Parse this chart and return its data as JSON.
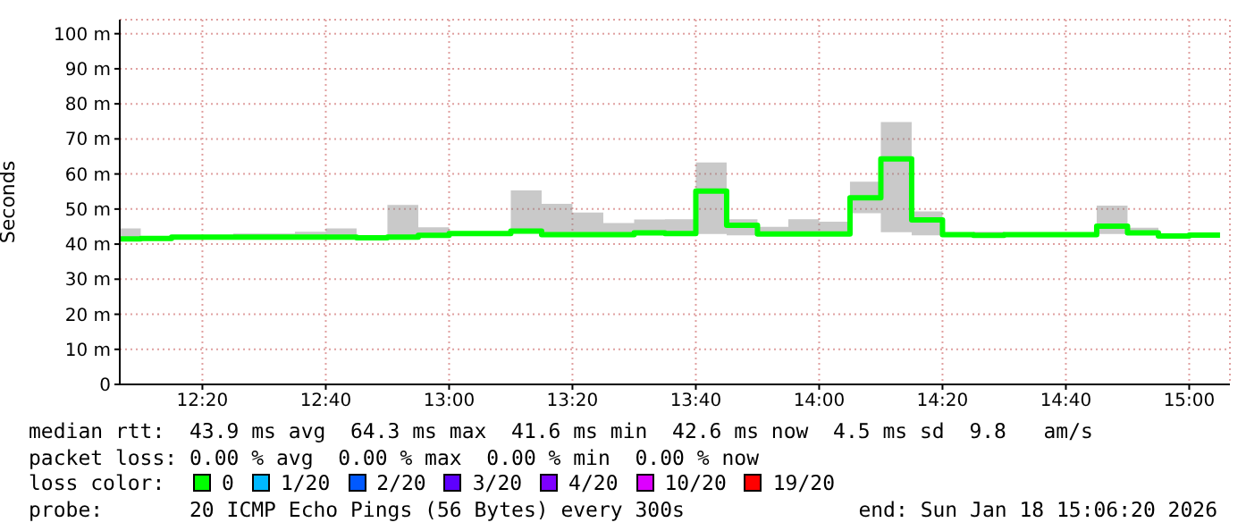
{
  "chart_data": {
    "type": "step",
    "ylabel": "Seconds",
    "x": [
      12.11,
      12.1667,
      12.25,
      12.3333,
      12.4167,
      12.5,
      12.5833,
      12.6667,
      12.75,
      12.8333,
      12.9167,
      13,
      13.0833,
      13.1667,
      13.25,
      13.3333,
      13.4167,
      13.5,
      13.5833,
      13.6667,
      13.75,
      13.8333,
      13.9167,
      14,
      14.0833,
      14.1667,
      14.25,
      14.3333,
      14.4167,
      14.5,
      14.5833,
      14.6667,
      14.75,
      14.8333,
      14.9167,
      15,
      15.0833
    ],
    "series": [
      {
        "color": "#00ff00",
        "values": [
          41.5,
          41.6,
          42.0,
          42.0,
          42.0,
          42.0,
          42.0,
          42.0,
          41.8,
          42.0,
          42.5,
          43.0,
          43.0,
          43.7,
          42.7,
          42.7,
          42.7,
          43.2,
          43.0,
          55.1,
          45.4,
          42.9,
          42.9,
          42.9,
          53.2,
          64.3,
          46.9,
          42.7,
          42.5,
          42.7,
          42.7,
          42.7,
          45.1,
          43.2,
          42.3,
          42.6,
          42.6
        ],
        "lower": [
          41.2,
          41.3,
          41.7,
          41.7,
          41.7,
          41.7,
          41.7,
          41.7,
          41.5,
          41.7,
          42.2,
          42.7,
          42.7,
          43.0,
          42.4,
          42.4,
          42.4,
          42.9,
          42.7,
          42.9,
          42.5,
          42.6,
          42.6,
          42.6,
          48.8,
          43.4,
          42.5,
          42.4,
          42.2,
          42.4,
          42.4,
          42.4,
          42.9,
          42.9,
          42.0,
          42.3,
          42.3
        ],
        "upper": [
          44.5,
          42.0,
          42.5,
          42.5,
          43.0,
          43.0,
          43.5,
          44.5,
          42.5,
          51.2,
          44.8,
          43.5,
          43.5,
          55.3,
          51.5,
          49.0,
          46.0,
          47.0,
          47.1,
          63.3,
          47.1,
          44.9,
          47.1,
          46.4,
          57.8,
          74.8,
          49.3,
          43.2,
          43.5,
          43.2,
          43.2,
          43.2,
          51.0,
          44.7,
          42.8,
          42.8,
          42.8
        ]
      }
    ],
    "xlim": [
      12.11,
      15.11
    ],
    "xticks": [
      {
        "value": 12.3333,
        "label": "12:20"
      },
      {
        "value": 12.6667,
        "label": "12:40"
      },
      {
        "value": 13,
        "label": "13:00"
      },
      {
        "value": 13.3333,
        "label": "13:20"
      },
      {
        "value": 13.6667,
        "label": "13:40"
      },
      {
        "value": 14,
        "label": "14:00"
      },
      {
        "value": 14.3333,
        "label": "14:20"
      },
      {
        "value": 14.6667,
        "label": "14:40"
      },
      {
        "value": 15,
        "label": "15:00"
      }
    ],
    "ylim": [
      0,
      104
    ],
    "yticks": [
      0,
      {
        "value": 10,
        "label": "10 m"
      },
      {
        "value": 20,
        "label": "20 m"
      },
      {
        "value": 30,
        "label": "30 m"
      },
      {
        "value": 40,
        "label": "40 m"
      },
      {
        "value": 50,
        "label": "50 m"
      },
      {
        "value": 60,
        "label": "60 m"
      },
      {
        "value": 70,
        "label": "70 m"
      },
      {
        "value": 80,
        "label": "80 m"
      },
      {
        "value": 90,
        "label": "90 m"
      },
      {
        "value": 100,
        "label": "100 m"
      }
    ],
    "grid": true,
    "annotations": [
      "median rtt:  43.9 ms avg  64.3 ms max  41.6 ms min  42.6 ms now  4.5 ms sd  9.8   am/s",
      "packet loss: 0.00 % avg  0.00 % max  0.00 % min  0.00 % now",
      "loss color:",
      "0",
      "1/20",
      "2/20",
      "3/20",
      "4/20",
      "10/20",
      "19/20",
      "probe:       20 ICMP Echo Pings (56 Bytes) every 300s",
      "end: Sun Jan 18 15:06:20 2026"
    ]
  }
}
